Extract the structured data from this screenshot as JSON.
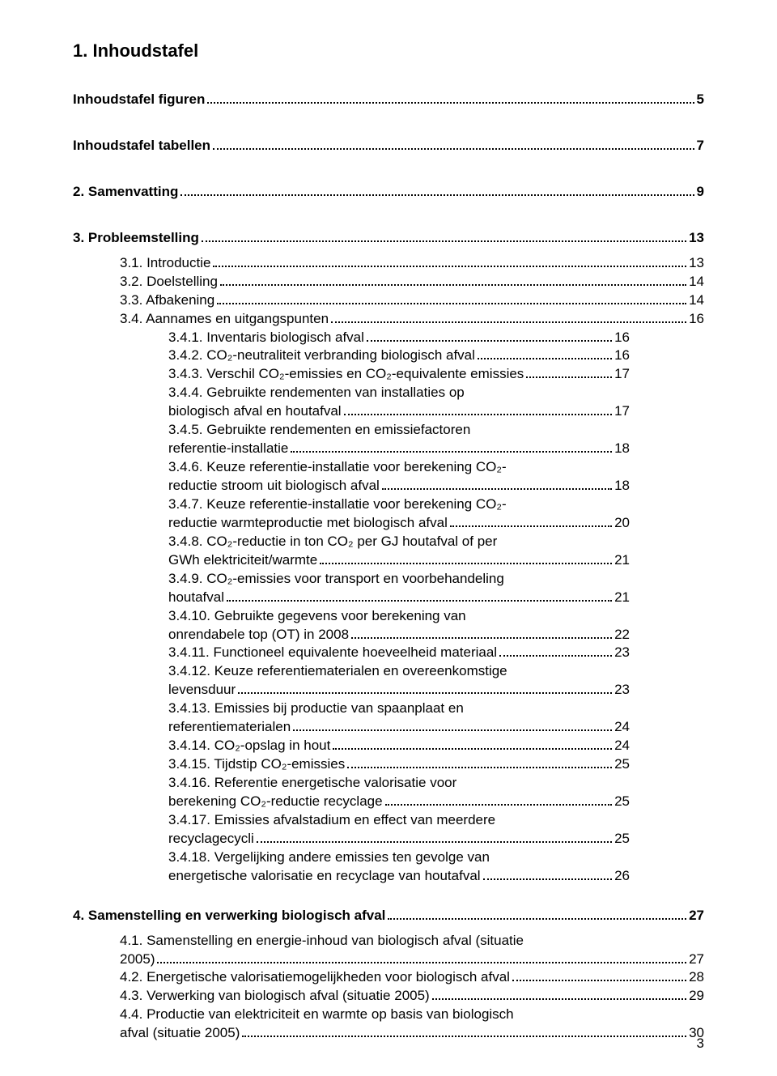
{
  "title": "1. Inhoudstafel",
  "pagenum": "3",
  "entries": [
    {
      "type": "line",
      "indent": 0,
      "bold": true,
      "label": "Inhoudstafel figuren",
      "page": "5",
      "wrap": false
    },
    {
      "type": "gap",
      "size": "md"
    },
    {
      "type": "line",
      "indent": 0,
      "bold": true,
      "label": "Inhoudstafel tabellen",
      "page": "7",
      "wrap": false
    },
    {
      "type": "gap",
      "size": "md"
    },
    {
      "type": "line",
      "indent": 0,
      "bold": true,
      "label": "2. Samenvatting",
      "page": "9",
      "wrap": false
    },
    {
      "type": "gap",
      "size": "md"
    },
    {
      "type": "line",
      "indent": 0,
      "bold": true,
      "label": "3. Probleemstelling",
      "page": "13",
      "wrap": false
    },
    {
      "type": "line",
      "indent": 1,
      "bold": false,
      "label": "3.1. Introductie",
      "page": "13",
      "wrap": false
    },
    {
      "type": "line",
      "indent": 1,
      "bold": false,
      "label": "3.2. Doelstelling",
      "page": "14",
      "wrap": false
    },
    {
      "type": "line",
      "indent": 1,
      "bold": false,
      "label": "3.3. Afbakening",
      "page": "14",
      "wrap": false
    },
    {
      "type": "line",
      "indent": 1,
      "bold": false,
      "label": "3.4. Aannames en uitgangspunten",
      "page": "16",
      "wrap": false
    },
    {
      "type": "line",
      "indent": 2,
      "bold": false,
      "label": "3.4.1. Inventaris biologisch afval",
      "page": "16",
      "wrap": false
    },
    {
      "type": "line",
      "indent": 2,
      "bold": false,
      "label": "3.4.2. CO₂-neutraliteit verbranding biologisch afval",
      "page": "16",
      "wrap": false
    },
    {
      "type": "line",
      "indent": 2,
      "bold": false,
      "label": "3.4.3. Verschil CO₂-emissies en CO₂-equivalente emissies",
      "page": "17",
      "wrap": false
    },
    {
      "type": "wrap2",
      "indent": 2,
      "l1": "3.4.4. Gebruikte rendementen van installaties op",
      "l2": "biologisch afval en houtafval",
      "page": "17"
    },
    {
      "type": "wrap2",
      "indent": 2,
      "l1": "3.4.5. Gebruikte rendementen en emissiefactoren",
      "l2": "referentie-installatie",
      "page": "18"
    },
    {
      "type": "wrap2",
      "indent": 2,
      "l1": "3.4.6. Keuze referentie-installatie voor berekening CO₂-",
      "l2": "reductie stroom uit biologisch afval",
      "page": "18"
    },
    {
      "type": "wrap2",
      "indent": 2,
      "l1": "3.4.7. Keuze referentie-installatie voor berekening CO₂-",
      "l2": "reductie warmteproductie met biologisch afval",
      "page": "20"
    },
    {
      "type": "wrap2",
      "indent": 2,
      "l1": "3.4.8. CO₂-reductie in ton CO₂ per GJ houtafval of per",
      "l2": "GWh elektriciteit/warmte",
      "page": "21"
    },
    {
      "type": "wrap2",
      "indent": 2,
      "l1": "3.4.9. CO₂-emissies voor transport en voorbehandeling",
      "l2": "houtafval",
      "page": "21"
    },
    {
      "type": "wrap2",
      "indent": 2,
      "l1": "3.4.10. Gebruikte gegevens voor berekening van",
      "l2": "onrendabele top (OT) in 2008",
      "page": "22"
    },
    {
      "type": "line",
      "indent": 2,
      "bold": false,
      "label": "3.4.11. Functioneel equivalente hoeveelheid materiaal",
      "page": "23",
      "wrap": false
    },
    {
      "type": "wrap2",
      "indent": 2,
      "l1": "3.4.12. Keuze referentiematerialen en overeenkomstige",
      "l2": "levensduur",
      "page": "23"
    },
    {
      "type": "wrap2",
      "indent": 2,
      "l1": "3.4.13. Emissies bij productie van spaanplaat en",
      "l2": "referentiematerialen",
      "page": "24"
    },
    {
      "type": "line",
      "indent": 2,
      "bold": false,
      "label": "3.4.14. CO₂-opslag in hout",
      "page": "24",
      "wrap": false
    },
    {
      "type": "line",
      "indent": 2,
      "bold": false,
      "label": "3.4.15. Tijdstip CO₂-emissies",
      "page": "25",
      "wrap": false
    },
    {
      "type": "wrap2",
      "indent": 2,
      "l1": "3.4.16. Referentie energetische valorisatie voor",
      "l2": "berekening CO₂-reductie recyclage",
      "page": "25"
    },
    {
      "type": "wrap2",
      "indent": 2,
      "l1": "3.4.17. Emissies afvalstadium en effect van meerdere",
      "l2": "recyclagecycli",
      "page": "25"
    },
    {
      "type": "wrap2",
      "indent": 2,
      "l1": "3.4.18. Vergelijking andere emissies ten gevolge van",
      "l2": "energetische valorisatie en recyclage van houtafval",
      "page": "26"
    },
    {
      "type": "gap",
      "size": "md"
    },
    {
      "type": "line",
      "indent": 0,
      "bold": true,
      "label": "4. Samenstelling en verwerking biologisch afval",
      "page": "27",
      "wrap": false
    },
    {
      "type": "wrap2",
      "indent": 1,
      "l1": "4.1. Samenstelling en energie-inhoud van biologisch afval (situatie",
      "l2": "2005)",
      "page": "27"
    },
    {
      "type": "line",
      "indent": 1,
      "bold": false,
      "label": "4.2. Energetische valorisatiemogelijkheden voor biologisch afval",
      "page": "28",
      "wrap": false
    },
    {
      "type": "line",
      "indent": 1,
      "bold": false,
      "label": "4.3. Verwerking van biologisch afval (situatie 2005)",
      "page": "29",
      "wrap": false
    },
    {
      "type": "wrap2",
      "indent": 1,
      "l1": "4.4. Productie van elektriciteit en warmte op basis van biologisch",
      "l2": "afval (situatie 2005)",
      "page": "30"
    }
  ]
}
